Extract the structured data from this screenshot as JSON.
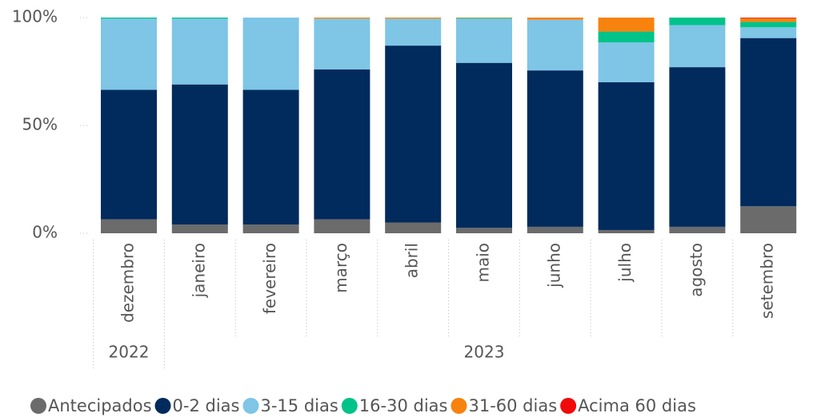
{
  "chart_data": {
    "type": "stacked_bar_100",
    "categories": [
      "dezembro",
      "janeiro",
      "fevereiro",
      "março",
      "abril",
      "maio",
      "junho",
      "julho",
      "agosto",
      "setembro"
    ],
    "category_groups": [
      {
        "label": "2022",
        "count": 1
      },
      {
        "label": "2023",
        "count": 9
      }
    ],
    "series": [
      {
        "name": "Antecipados",
        "color": "#6b6b6b",
        "values": [
          6.5,
          4,
          4,
          6.5,
          5,
          2.5,
          3,
          1.5,
          3,
          12.5
        ]
      },
      {
        "name": "0-2 dias",
        "color": "#002b5c",
        "values": [
          60,
          65,
          62.5,
          69.5,
          82,
          76.5,
          72.5,
          68.5,
          74,
          78
        ]
      },
      {
        "name": "3-15 dias",
        "color": "#7ec5e6",
        "values": [
          33,
          30.5,
          33.5,
          23.5,
          12.5,
          20.5,
          23.5,
          18.5,
          19.5,
          5
        ]
      },
      {
        "name": "16-30 dias",
        "color": "#00c389",
        "values": [
          0.5,
          0.5,
          0,
          0,
          0,
          0.3,
          0,
          5,
          3.5,
          2.5
        ]
      },
      {
        "name": "31-60 dias",
        "color": "#f7820e",
        "values": [
          0,
          0,
          0,
          0.5,
          0.5,
          0.2,
          1,
          6.5,
          0,
          1.7
        ]
      },
      {
        "name": "Acima 60 dias",
        "color": "#f00a0a",
        "values": [
          0,
          0,
          0,
          0,
          0,
          0,
          0,
          0,
          0,
          0.3
        ]
      }
    ],
    "ylim": [
      0,
      100
    ],
    "yticks": [
      {
        "value": 0,
        "label": "0%"
      },
      {
        "value": 50,
        "label": "50%"
      },
      {
        "value": 100,
        "label": "100%"
      }
    ]
  }
}
